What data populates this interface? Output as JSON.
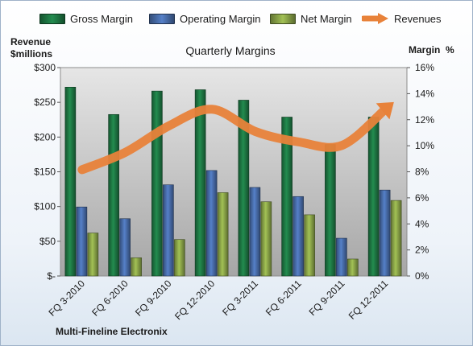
{
  "chart_data": {
    "type": "bar",
    "title": "Quarterly Margins",
    "company": "Multi-Fineline Electronix",
    "y_left_label_line1": "Revenue",
    "y_left_label_line2": "$millions",
    "y_right_label": "Margin  %",
    "categories": [
      "FQ 3-2010",
      "FQ 6-2010",
      "FQ 9-2010",
      "FQ 12-2010",
      "FQ 3-2011",
      "FQ 6-2011",
      "FQ 9-2011",
      "FQ 12-2011"
    ],
    "left_axis": {
      "ticks": [
        "$-",
        "$50",
        "$100",
        "$150",
        "$200",
        "$250",
        "$300"
      ],
      "min": 0,
      "max": 300
    },
    "right_axis": {
      "ticks": [
        "0%",
        "2%",
        "4%",
        "6%",
        "8%",
        "10%",
        "12%",
        "14%",
        "16%"
      ],
      "min": 0,
      "max": 16
    },
    "series": [
      {
        "name": "Gross Margin",
        "type": "bar",
        "axis": "right",
        "color": "#1e7a45",
        "values": [
          14.5,
          12.4,
          14.2,
          14.3,
          13.5,
          12.2,
          10.1,
          12.2
        ]
      },
      {
        "name": "Operating Margin",
        "type": "bar",
        "axis": "right",
        "color": "#4a6fae",
        "values": [
          5.3,
          4.4,
          7.0,
          8.1,
          6.8,
          6.1,
          2.9,
          6.6
        ]
      },
      {
        "name": "Net Margin",
        "type": "bar",
        "axis": "right",
        "color": "#8da84a",
        "values": [
          3.3,
          1.4,
          2.8,
          6.4,
          5.7,
          4.7,
          1.3,
          5.8
        ]
      },
      {
        "name": "Revenues",
        "type": "line",
        "axis": "left",
        "color": "#e8823a",
        "values": [
          153,
          178,
          216,
          240,
          208,
          193,
          188,
          240
        ]
      }
    ],
    "legend_position": "top",
    "grid": false
  }
}
